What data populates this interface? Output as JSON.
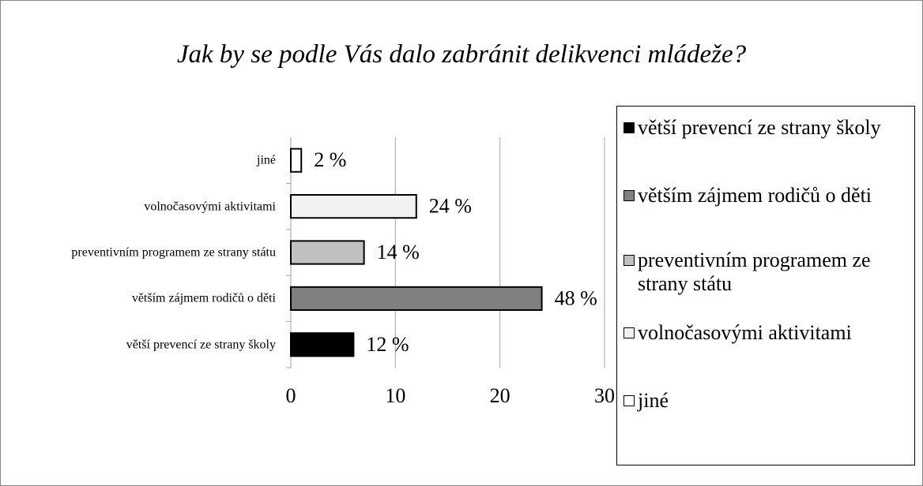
{
  "chart_data": {
    "type": "bar",
    "orientation": "horizontal",
    "title": "Jak by se podle Vás dalo zabránit delikvenci mládeže?",
    "categories": [
      "větší prevencí ze strany školy",
      "větším zájmem rodičů o děti",
      "preventivním programem ze strany státu",
      "volnočasovými aktivitami",
      "jiné"
    ],
    "values": [
      6,
      24,
      7,
      12,
      1
    ],
    "value_labels": [
      "12 %",
      "48 %",
      "14 %",
      "24 %",
      "2 %"
    ],
    "colors": [
      "#000000",
      "#808080",
      "#c0c0c0",
      "#f2f2f2",
      "#ffffff"
    ],
    "xlim": [
      0,
      30
    ],
    "xticks": [
      0,
      10,
      20,
      30
    ],
    "grid": true,
    "legend": "right"
  }
}
